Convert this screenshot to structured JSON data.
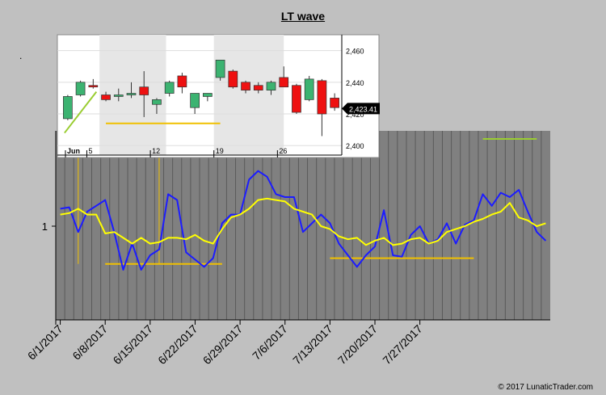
{
  "title": "LT wave",
  "corner_mark": ".",
  "copyright": "© 2017 LunaticTrader.com",
  "colors": {
    "background": "#c0c0c0",
    "plot_bg": "#808080",
    "wave_line": "#1c1cff",
    "smooth_line": "#ffff00",
    "yellow_marker": "#f0c000",
    "green_marker": "#9acd32",
    "candle_up": "#3cb371",
    "candle_down": "#ee1111"
  },
  "chart_data": [
    {
      "type": "line",
      "title": "LT wave",
      "xlabel": "",
      "ylabel": "",
      "x_tick_labels": [
        "6/1/2017",
        "6/8/2017",
        "6/15/2017",
        "6/22/2017",
        "6/29/2017",
        "7/6/2017",
        "7/13/2017",
        "7/20/2017",
        "7/27/2017"
      ],
      "y_tick_labels": [
        "1"
      ],
      "grid": "vertical",
      "series": [
        {
          "color": "blue",
          "values": [
            1.12,
            1.13,
            0.96,
            1.1,
            1.14,
            1.18,
            0.96,
            0.7,
            0.88,
            0.7,
            0.8,
            0.84,
            1.22,
            1.18,
            0.82,
            0.77,
            0.72,
            0.78,
            1.02,
            1.08,
            1.08,
            1.32,
            1.38,
            1.34,
            1.22,
            1.2,
            1.2,
            0.96,
            1.02,
            1.08,
            1.02,
            0.88,
            0.8,
            0.72,
            0.8,
            0.86,
            1.11,
            0.8,
            0.79,
            0.94,
            1.0,
            0.88,
            0.91,
            1.02,
            0.88,
            1.01,
            1.04,
            1.22,
            1.14,
            1.23,
            1.2,
            1.25,
            1.1,
            0.96,
            0.9
          ]
        },
        {
          "color": "yellow",
          "values": [
            1.08,
            1.09,
            1.12,
            1.08,
            1.08,
            0.95,
            0.96,
            0.92,
            0.88,
            0.92,
            0.88,
            0.89,
            0.92,
            0.92,
            0.91,
            0.94,
            0.9,
            0.88,
            0.98,
            1.06,
            1.08,
            1.12,
            1.18,
            1.19,
            1.18,
            1.17,
            1.12,
            1.1,
            1.08,
            1.0,
            0.98,
            0.93,
            0.91,
            0.92,
            0.87,
            0.9,
            0.92,
            0.87,
            0.88,
            0.91,
            0.92,
            0.88,
            0.9,
            0.96,
            0.98,
            1.0,
            1.03,
            1.05,
            1.08,
            1.1,
            1.16,
            1.06,
            1.04,
            1.0,
            1.02
          ]
        }
      ],
      "horizontal_markers": [
        {
          "color": "yellow",
          "y": 0.74,
          "from_index": 5,
          "to_index": 18
        },
        {
          "color": "yellow",
          "y": 0.78,
          "from_index": 30,
          "to_index": 46
        },
        {
          "color": "green",
          "y": 1.54,
          "from_index": 0,
          "to_index": 4
        },
        {
          "color": "green",
          "y": 1.59,
          "from_index": 18,
          "to_index": 27
        },
        {
          "color": "green",
          "y": 1.6,
          "from_index": 47,
          "to_index": 53
        }
      ],
      "vertical_markers": [
        {
          "color": "yellow",
          "index": 2
        },
        {
          "color": "yellow",
          "index": 11
        }
      ]
    },
    {
      "type": "candlestick",
      "xlabel": "",
      "ylabel": "",
      "x_tick_labels": [
        "Jun",
        "5",
        "12",
        "19",
        "26"
      ],
      "y_tick_labels": [
        "2,460",
        "2,440",
        "2,420",
        "2,400"
      ],
      "ylim": [
        2394,
        2470
      ],
      "last_price_label": "2,423.41",
      "candles": [
        {
          "open": 2417,
          "high": 2432,
          "low": 2416,
          "close": 2431
        },
        {
          "open": 2432,
          "high": 2441,
          "low": 2431,
          "close": 2440
        },
        {
          "open": 2438,
          "high": 2442,
          "low": 2436,
          "close": 2437
        },
        {
          "open": 2432,
          "high": 2434,
          "low": 2428,
          "close": 2429
        },
        {
          "open": 2431,
          "high": 2436,
          "low": 2428,
          "close": 2432
        },
        {
          "open": 2432,
          "high": 2440,
          "low": 2430,
          "close": 2433
        },
        {
          "open": 2437,
          "high": 2447,
          "low": 2418,
          "close": 2432
        },
        {
          "open": 2426,
          "high": 2430,
          "low": 2420,
          "close": 2429
        },
        {
          "open": 2433,
          "high": 2441,
          "low": 2431,
          "close": 2440
        },
        {
          "open": 2444,
          "high": 2446,
          "low": 2433,
          "close": 2437
        },
        {
          "open": 2424,
          "high": 2433,
          "low": 2420,
          "close": 2433
        },
        {
          "open": 2431,
          "high": 2433,
          "low": 2428,
          "close": 2433
        },
        {
          "open": 2443,
          "high": 2454,
          "low": 2441,
          "close": 2454
        },
        {
          "open": 2447,
          "high": 2448,
          "low": 2436,
          "close": 2437
        },
        {
          "open": 2440,
          "high": 2441,
          "low": 2433,
          "close": 2435
        },
        {
          "open": 2438,
          "high": 2440,
          "low": 2433,
          "close": 2435
        },
        {
          "open": 2435,
          "high": 2441,
          "low": 2432,
          "close": 2440
        },
        {
          "open": 2443,
          "high": 2450,
          "low": 2437,
          "close": 2437
        },
        {
          "open": 2438,
          "high": 2439,
          "low": 2420,
          "close": 2421
        },
        {
          "open": 2429,
          "high": 2444,
          "low": 2428,
          "close": 2442
        },
        {
          "open": 2441,
          "high": 2442,
          "low": 2406,
          "close": 2420
        },
        {
          "open": 2430,
          "high": 2433,
          "low": 2422,
          "close": 2424
        }
      ],
      "horizontal_markers": [
        {
          "color": "yellow",
          "y": 2414,
          "from_index": 3,
          "to_index": 12
        }
      ],
      "trend_line": {
        "color": "green",
        "from": {
          "index": 0,
          "y": 2408
        },
        "to": {
          "index": 2,
          "y": 2434
        }
      },
      "vertical_markers": [
        {
          "color": "yellow",
          "index": 2
        },
        {
          "color": "yellow",
          "index": 8
        }
      ]
    }
  ]
}
